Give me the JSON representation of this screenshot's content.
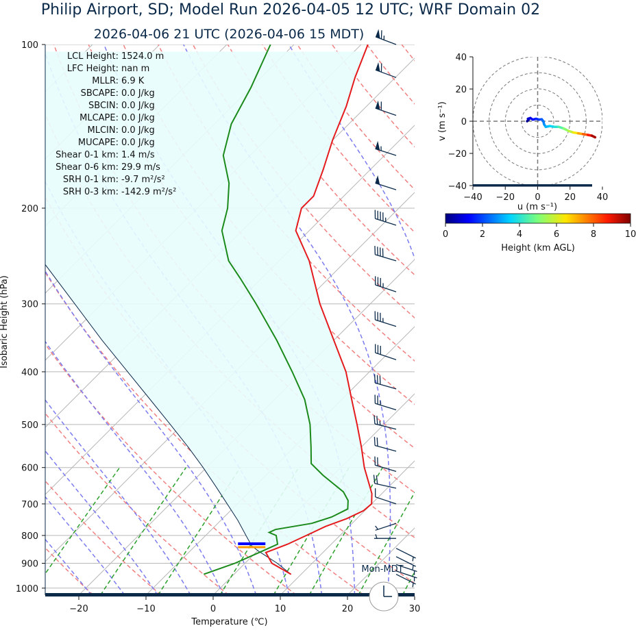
{
  "title": "Philip Airport, SD; Model Run 2026-04-05 12 UTC; WRF Domain 02",
  "subtitle": "2026-04-06 21 UTC  (2026-04-06 15 MDT)",
  "clock_label": "Mon-MDT",
  "colors": {
    "temperature": "#e41a1c",
    "dewpoint": "#1a8a1a",
    "parcel": "#0b2a4a",
    "cape_fill": "#e8fdfd",
    "dry_adiabat": "#f08080",
    "moist_adiabat": "#7b7bf0",
    "mixing_ratio": "#2ca02c",
    "isotherm": "#b8b8b8",
    "barb": "#0b2a4a"
  },
  "stats": [
    {
      "label": "LCL Height:",
      "value": "1524.0 m"
    },
    {
      "label": "LFC Height:",
      "value": "nan m"
    },
    {
      "label": "MLLR:",
      "value": "6.9 K"
    },
    {
      "label": "SBCAPE:",
      "value": "0.0 J/kg"
    },
    {
      "label": "SBCIN:",
      "value": "0.0 J/kg"
    },
    {
      "label": "MLCAPE:",
      "value": "0.0 J/kg"
    },
    {
      "label": "MLCIN:",
      "value": "0.0 J/kg"
    },
    {
      "label": "MUCAPE:",
      "value": "0.0 J/kg"
    },
    {
      "label": "Shear 0-1 km:",
      "value": "1.4 m/s"
    },
    {
      "label": "Shear 0-6 km:",
      "value": "29.9 m/s"
    },
    {
      "label": "SRH 0-1 km:",
      "value": "-9.7 m²/s²"
    },
    {
      "label": "SRH 0-3 km:",
      "value": "-142.9 m²/s²"
    }
  ],
  "chart_data": [
    {
      "type": "line",
      "subtype": "skew-t log-p",
      "xlabel": "Temperature (℃)",
      "ylabel": "Isobaric Height (hPa)",
      "xlim": [
        -25,
        30
      ],
      "ylim": [
        1030,
        100
      ],
      "y_scale": "log",
      "xticks": [
        -20,
        -10,
        0,
        10,
        20,
        30
      ],
      "yticks": [
        1000,
        900,
        800,
        700,
        600,
        500,
        400,
        300,
        200,
        100
      ],
      "grid": true,
      "series": [
        {
          "role": "temperature",
          "points": [
            {
              "p": 943,
              "t": 8.5
            },
            {
              "p": 900,
              "t": 4.0
            },
            {
              "p": 860,
              "t": 1.5
            },
            {
              "p": 830,
              "t": 3.5
            },
            {
              "p": 790,
              "t": 5.5
            },
            {
              "p": 770,
              "t": 6.5
            },
            {
              "p": 745,
              "t": 8.5
            },
            {
              "p": 720,
              "t": 9.8
            },
            {
              "p": 700,
              "t": 10.0
            },
            {
              "p": 670,
              "t": 8.5
            },
            {
              "p": 600,
              "t": 3.5
            },
            {
              "p": 550,
              "t": 0.0
            },
            {
              "p": 500,
              "t": -4.0
            },
            {
              "p": 450,
              "t": -8.5
            },
            {
              "p": 400,
              "t": -13.5
            },
            {
              "p": 350,
              "t": -20.0
            },
            {
              "p": 300,
              "t": -27.5
            },
            {
              "p": 250,
              "t": -35.5
            },
            {
              "p": 220,
              "t": -42.0
            },
            {
              "p": 200,
              "t": -44.5
            },
            {
              "p": 190,
              "t": -44.5
            },
            {
              "p": 170,
              "t": -47.0
            },
            {
              "p": 150,
              "t": -50.0
            },
            {
              "p": 130,
              "t": -53.0
            },
            {
              "p": 115,
              "t": -56.0
            },
            {
              "p": 100,
              "t": -59.0
            }
          ]
        },
        {
          "role": "dewpoint",
          "points": [
            {
              "p": 943,
              "t": -4.5
            },
            {
              "p": 900,
              "t": -1.5
            },
            {
              "p": 860,
              "t": 0.5
            },
            {
              "p": 830,
              "t": 2.0
            },
            {
              "p": 800,
              "t": 0.5
            },
            {
              "p": 790,
              "t": -1.0
            },
            {
              "p": 780,
              "t": -0.5
            },
            {
              "p": 760,
              "t": 4.0
            },
            {
              "p": 740,
              "t": 6.0
            },
            {
              "p": 715,
              "t": 7.2
            },
            {
              "p": 690,
              "t": 6.0
            },
            {
              "p": 665,
              "t": 4.0
            },
            {
              "p": 640,
              "t": 1.0
            },
            {
              "p": 620,
              "t": -1.5
            },
            {
              "p": 590,
              "t": -5.0
            },
            {
              "p": 550,
              "t": -7.5
            },
            {
              "p": 500,
              "t": -11.0
            },
            {
              "p": 450,
              "t": -15.5
            },
            {
              "p": 400,
              "t": -21.5
            },
            {
              "p": 350,
              "t": -28.5
            },
            {
              "p": 300,
              "t": -37.0
            },
            {
              "p": 270,
              "t": -43.0
            },
            {
              "p": 250,
              "t": -47.5
            },
            {
              "p": 220,
              "t": -53.0
            },
            {
              "p": 200,
              "t": -55.5
            },
            {
              "p": 180,
              "t": -59.0
            },
            {
              "p": 160,
              "t": -64.0
            },
            {
              "p": 140,
              "t": -67.5
            },
            {
              "p": 120,
              "t": -70.0
            },
            {
              "p": 100,
              "t": -73.5
            }
          ]
        },
        {
          "role": "parcel",
          "points": [
            {
              "p": 943,
              "t": 8.5
            },
            {
              "p": 900,
              "t": 4.8
            },
            {
              "p": 855,
              "t": 0.2
            },
            {
              "p": 836,
              "t": -1.6
            },
            {
              "p": 800,
              "t": -4.0
            },
            {
              "p": 750,
              "t": -7.5
            },
            {
              "p": 700,
              "t": -11.5
            },
            {
              "p": 650,
              "t": -15.8
            },
            {
              "p": 600,
              "t": -20.5
            },
            {
              "p": 550,
              "t": -25.8
            },
            {
              "p": 500,
              "t": -31.8
            },
            {
              "p": 450,
              "t": -38.5
            },
            {
              "p": 400,
              "t": -46.0
            },
            {
              "p": 350,
              "t": -54.5
            },
            {
              "p": 300,
              "t": -64.0
            }
          ]
        }
      ],
      "lcl_pressure": 836,
      "wind_barbs": [
        {
          "p": 100,
          "u": 32,
          "v": -12
        },
        {
          "p": 115,
          "u": 30,
          "v": -11
        },
        {
          "p": 135,
          "u": 29,
          "v": -10
        },
        {
          "p": 160,
          "u": 28,
          "v": -9
        },
        {
          "p": 185,
          "u": 25,
          "v": -8
        },
        {
          "p": 215,
          "u": 22,
          "v": -7
        },
        {
          "p": 250,
          "u": 20,
          "v": -6
        },
        {
          "p": 285,
          "u": 18,
          "v": -6
        },
        {
          "p": 330,
          "u": 16,
          "v": -5
        },
        {
          "p": 380,
          "u": 15,
          "v": -5
        },
        {
          "p": 430,
          "u": 14,
          "v": -4
        },
        {
          "p": 470,
          "u": 13,
          "v": -4
        },
        {
          "p": 510,
          "u": 12,
          "v": -3
        },
        {
          "p": 560,
          "u": 11,
          "v": -3
        },
        {
          "p": 610,
          "u": 10,
          "v": -3
        },
        {
          "p": 655,
          "u": 9,
          "v": -2
        },
        {
          "p": 700,
          "u": 6,
          "v": -2
        },
        {
          "p": 760,
          "u": 3,
          "v": 1
        },
        {
          "p": 810,
          "u": 2,
          "v": 0
        },
        {
          "p": 845,
          "u": -2,
          "v": 1
        },
        {
          "p": 875,
          "u": -2,
          "v": 1
        },
        {
          "p": 905,
          "u": -3,
          "v": 1
        },
        {
          "p": 930,
          "u": -3,
          "v": 1
        },
        {
          "p": 943,
          "u": -2,
          "v": 1
        }
      ]
    },
    {
      "type": "line",
      "subtype": "hodograph",
      "xlabel": "u (m s⁻¹)",
      "ylabel": "v (m s⁻¹)",
      "xlim": [
        -40,
        40
      ],
      "ylim": [
        -40,
        40
      ],
      "xticks": [
        -40,
        -20,
        0,
        20,
        40
      ],
      "yticks": [
        -40,
        -20,
        0,
        20,
        40
      ],
      "rings": [
        10,
        20,
        30,
        40
      ],
      "colorbar": {
        "label": "Height (km AGL)",
        "range": [
          0,
          10
        ],
        "ticks": [
          0,
          2,
          4,
          6,
          8,
          10
        ]
      },
      "points": [
        {
          "u": -6.5,
          "v": 0.0,
          "h": 0.0
        },
        {
          "u": -5.5,
          "v": 1.0,
          "h": 0.3
        },
        {
          "u": -6.0,
          "v": 1.5,
          "h": 0.6
        },
        {
          "u": -4.5,
          "v": 2.0,
          "h": 0.9
        },
        {
          "u": -3.0,
          "v": 1.0,
          "h": 1.2
        },
        {
          "u": -1.0,
          "v": 1.5,
          "h": 1.5
        },
        {
          "u": 1.0,
          "v": 1.0,
          "h": 1.8
        },
        {
          "u": 2.5,
          "v": 1.2,
          "h": 2.1
        },
        {
          "u": 3.5,
          "v": 0.0,
          "h": 2.4
        },
        {
          "u": 4.0,
          "v": -2.0,
          "h": 2.7
        },
        {
          "u": 5.0,
          "v": -3.5,
          "h": 3.0
        },
        {
          "u": 7.5,
          "v": -3.0,
          "h": 3.4
        },
        {
          "u": 10.5,
          "v": -3.5,
          "h": 3.8
        },
        {
          "u": 13.0,
          "v": -3.5,
          "h": 4.2
        },
        {
          "u": 16.0,
          "v": -4.5,
          "h": 4.8
        },
        {
          "u": 19.0,
          "v": -6.0,
          "h": 5.4
        },
        {
          "u": 22.0,
          "v": -7.0,
          "h": 6.0
        },
        {
          "u": 25.0,
          "v": -7.5,
          "h": 6.8
        },
        {
          "u": 28.0,
          "v": -8.0,
          "h": 7.6
        },
        {
          "u": 31.0,
          "v": -8.5,
          "h": 8.4
        },
        {
          "u": 33.5,
          "v": -9.0,
          "h": 9.2
        },
        {
          "u": 35.5,
          "v": -10.0,
          "h": 10.0
        }
      ]
    }
  ]
}
